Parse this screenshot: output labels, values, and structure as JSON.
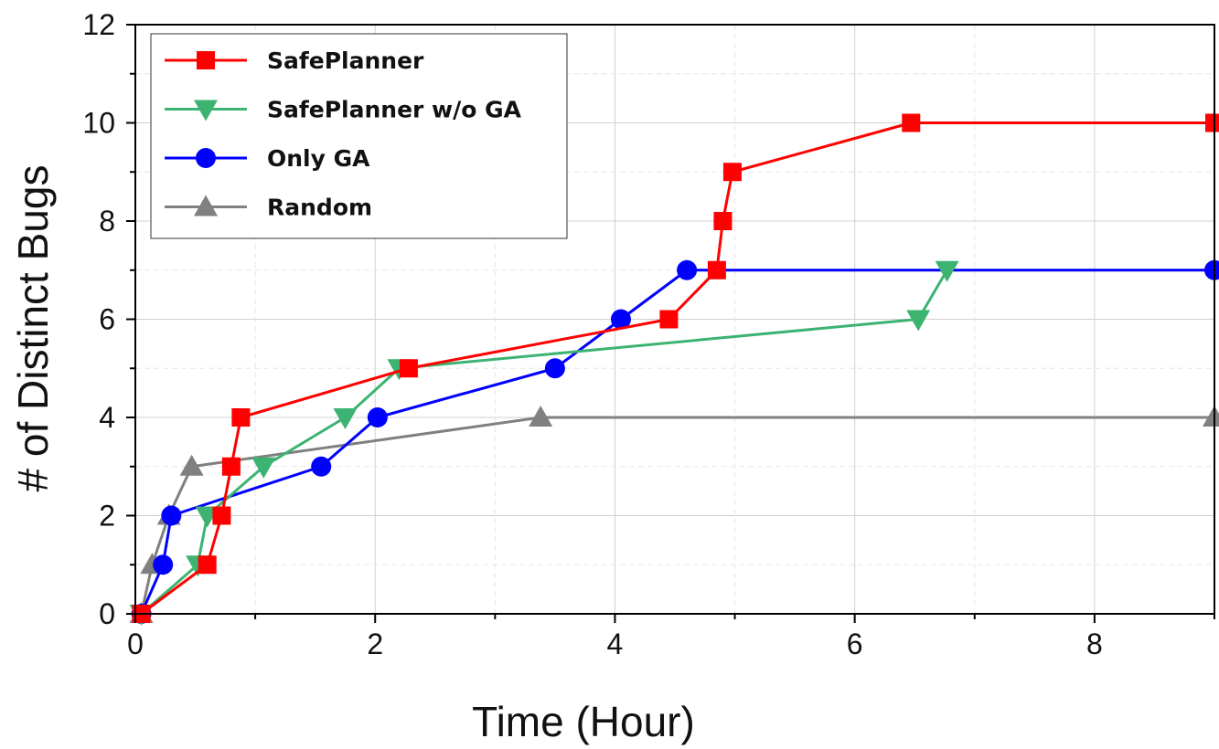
{
  "chart_data": {
    "type": "line",
    "title": "",
    "xlabel": "Time (Hour)",
    "ylabel": "# of Distinct Bugs",
    "xlim": [
      0,
      9
    ],
    "ylim": [
      0,
      12
    ],
    "x_ticks": [
      0,
      2,
      4,
      6,
      8
    ],
    "y_ticks": [
      0,
      2,
      4,
      6,
      8,
      10,
      12
    ],
    "grid": true,
    "legend_position": "top-left",
    "series": [
      {
        "name": "SafePlanner",
        "color": "#ff0000",
        "marker": "square",
        "x": [
          0.05,
          0.6,
          0.72,
          0.8,
          0.88,
          2.28,
          4.45,
          4.85,
          4.9,
          4.98,
          6.47,
          9.0
        ],
        "y": [
          0,
          1,
          2,
          3,
          4,
          5,
          6,
          7,
          8,
          9,
          10,
          10
        ]
      },
      {
        "name": "SafePlanner w/o GA",
        "color": "#3cb371",
        "marker": "triangle-down",
        "x": [
          0.05,
          0.52,
          0.6,
          1.07,
          1.75,
          2.2,
          6.53,
          6.77
        ],
        "y": [
          0,
          1,
          2,
          3,
          4,
          5,
          6,
          7
        ]
      },
      {
        "name": "Only GA",
        "color": "#0000ff",
        "marker": "circle",
        "x": [
          0.05,
          0.23,
          0.3,
          1.55,
          2.02,
          3.5,
          4.05,
          4.6,
          9.0
        ],
        "y": [
          0,
          1,
          2,
          3,
          4,
          5,
          6,
          7,
          7
        ]
      },
      {
        "name": "Random",
        "color": "#808080",
        "marker": "triangle-up",
        "x": [
          0.05,
          0.14,
          0.28,
          0.47,
          3.38,
          9.0
        ],
        "y": [
          0,
          1,
          2,
          3,
          4,
          4
        ]
      }
    ]
  }
}
